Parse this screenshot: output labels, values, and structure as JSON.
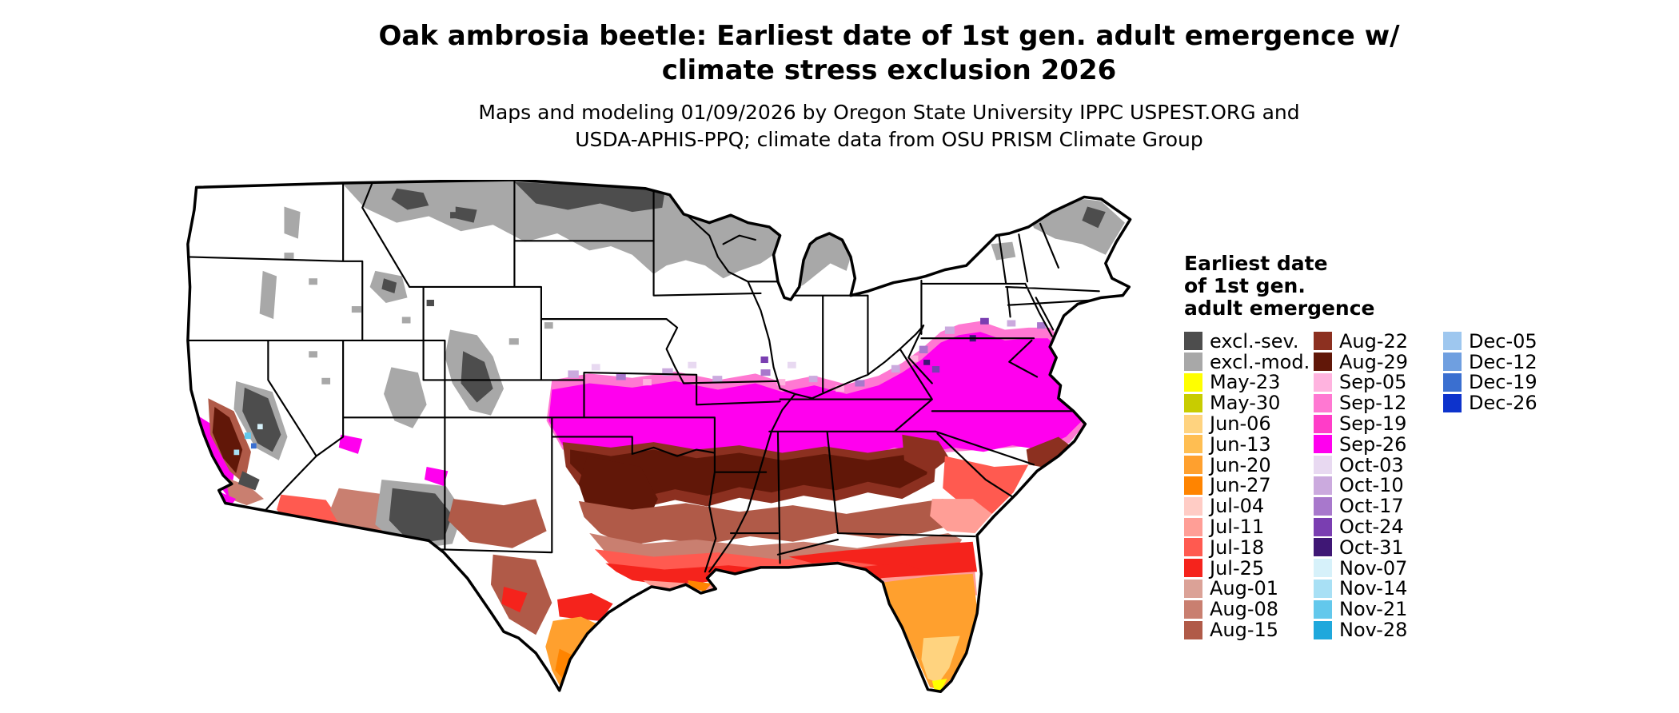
{
  "title": {
    "line1": "Oak ambrosia beetle: Earliest date of 1st gen. adult emergence w/",
    "line2": "climate stress exclusion 2026"
  },
  "subtitle": {
    "line1": "Maps and modeling 01/09/2026 by Oregon State University IPPC USPEST.ORG and",
    "line2": "USDA-APHIS-PPQ; climate data from OSU PRISM Climate Group"
  },
  "map": {
    "region": "Continental United States",
    "kind": "raster choropleth of earliest 1st generation adult emergence date"
  },
  "legend": {
    "title_lines": [
      "Earliest date",
      "of 1st gen.",
      "adult emergence"
    ],
    "columns": [
      [
        {
          "label": "excl.-sev.",
          "color": "#4d4d4d"
        },
        {
          "label": "excl.-mod.",
          "color": "#a8a8a8"
        },
        {
          "label": "May-23",
          "color": "#ffff00"
        },
        {
          "label": "May-30",
          "color": "#c8cc00"
        },
        {
          "label": "Jun-06",
          "color": "#ffd37f"
        },
        {
          "label": "Jun-13",
          "color": "#ffbe52"
        },
        {
          "label": "Jun-20",
          "color": "#ffa02e"
        },
        {
          "label": "Jun-27",
          "color": "#ff8400"
        },
        {
          "label": "Jul-04",
          "color": "#ffccc5"
        },
        {
          "label": "Jul-11",
          "color": "#ff9e96"
        },
        {
          "label": "Jul-18",
          "color": "#ff5a50"
        },
        {
          "label": "Jul-25",
          "color": "#f5231c"
        },
        {
          "label": "Aug-01",
          "color": "#dba297"
        },
        {
          "label": "Aug-08",
          "color": "#c97f70"
        },
        {
          "label": "Aug-15",
          "color": "#b05a48"
        }
      ],
      [
        {
          "label": "Aug-22",
          "color": "#8c3020"
        },
        {
          "label": "Aug-29",
          "color": "#611708"
        },
        {
          "label": "Sep-05",
          "color": "#ffb3df"
        },
        {
          "label": "Sep-12",
          "color": "#ff78d2"
        },
        {
          "label": "Sep-19",
          "color": "#ff3dc8"
        },
        {
          "label": "Sep-26",
          "color": "#ff00ee"
        },
        {
          "label": "Oct-03",
          "color": "#e8d9f1"
        },
        {
          "label": "Oct-10",
          "color": "#cbaade"
        },
        {
          "label": "Oct-17",
          "color": "#a878cc"
        },
        {
          "label": "Oct-24",
          "color": "#7a3eb1"
        },
        {
          "label": "Oct-31",
          "color": "#3f1775"
        },
        {
          "label": "Nov-07",
          "color": "#d6f1fa"
        },
        {
          "label": "Nov-14",
          "color": "#a8e0f5"
        },
        {
          "label": "Nov-21",
          "color": "#63c8ec"
        },
        {
          "label": "Nov-28",
          "color": "#1fa8dc"
        }
      ],
      [
        {
          "label": "Dec-05",
          "color": "#9ec7ef"
        },
        {
          "label": "Dec-12",
          "color": "#6f9fe0"
        },
        {
          "label": "Dec-19",
          "color": "#3a6fd0"
        },
        {
          "label": "Dec-26",
          "color": "#0d33cc"
        }
      ]
    ]
  }
}
